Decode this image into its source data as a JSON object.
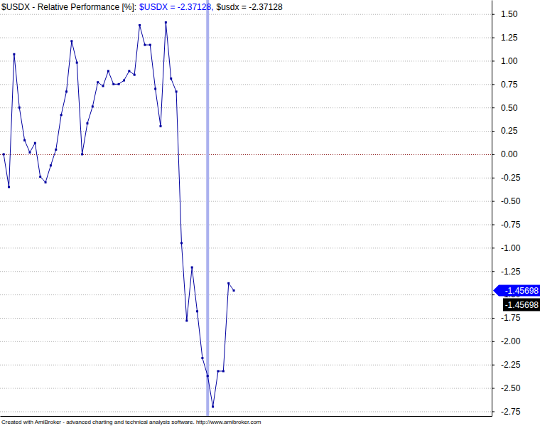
{
  "chart_data": {
    "type": "line",
    "title": "$USDX - Relative Performance [%]:",
    "footer": "Created with AmiBroker - advanced charting and technical analysis software. http://www.amibroker.com",
    "x": [
      0,
      1,
      2,
      3,
      4,
      5,
      6,
      7,
      8,
      9,
      10,
      11,
      12,
      13,
      14,
      15,
      16,
      17,
      18,
      19,
      20,
      21,
      22,
      23,
      24,
      25,
      26,
      27,
      28,
      29,
      30,
      31,
      32,
      33,
      34,
      35,
      36,
      37,
      38,
      39,
      40,
      41,
      42,
      43,
      44
    ],
    "values": [
      0.0,
      -0.35,
      1.07,
      0.5,
      0.15,
      0.02,
      0.12,
      -0.24,
      -0.3,
      -0.12,
      0.05,
      0.42,
      0.67,
      1.21,
      0.98,
      0.0,
      0.33,
      0.51,
      0.77,
      0.73,
      0.89,
      0.75,
      0.75,
      0.79,
      0.89,
      0.85,
      1.38,
      1.17,
      1.17,
      0.7,
      0.3,
      1.41,
      0.81,
      0.67,
      -0.95,
      -1.78,
      -1.21,
      -1.68,
      -2.18,
      -2.37128,
      -2.7,
      -2.32,
      -2.32,
      -1.38,
      -1.45698
    ],
    "color": "#0000a0",
    "marker": "square",
    "line_style": "solid",
    "xlim": [
      -0.7,
      93.3
    ],
    "ylim": [
      -2.8,
      1.65
    ],
    "yticks": [
      {
        "value": 1.5,
        "label": "1.50"
      },
      1.25,
      {
        "value": 1,
        "label": "1.00"
      },
      0.75,
      {
        "value": 0.5,
        "label": "0.50"
      },
      0.25,
      {
        "value": 0,
        "label": "0.00"
      },
      -0.25,
      {
        "value": -0.5,
        "label": "-0.50"
      },
      -0.75,
      {
        "value": -1,
        "label": "-1.00"
      },
      -1.25,
      {
        "value": -1.5,
        "label": "-1.50"
      },
      -1.75,
      {
        "value": -2,
        "label": "-2.00"
      },
      -2.25,
      {
        "value": -2.5,
        "label": "-2.50"
      },
      -2.75
    ],
    "grid": true,
    "tick_labels": "y",
    "annotations": [
      {
        "text": "$USDX = -2.37128,",
        "color": "#0000ff"
      },
      {
        "text": "$usdx = -2.37128",
        "color": "#000000"
      },
      {
        "type": "vline",
        "x": 39,
        "color": "#aab0ee"
      },
      {
        "type": "tag",
        "y": -1.45698,
        "label": "-1.45698",
        "color": "#0000ff"
      },
      {
        "type": "tag",
        "y": -1.45698,
        "label": "-1.45698",
        "color": "#000000"
      }
    ]
  }
}
